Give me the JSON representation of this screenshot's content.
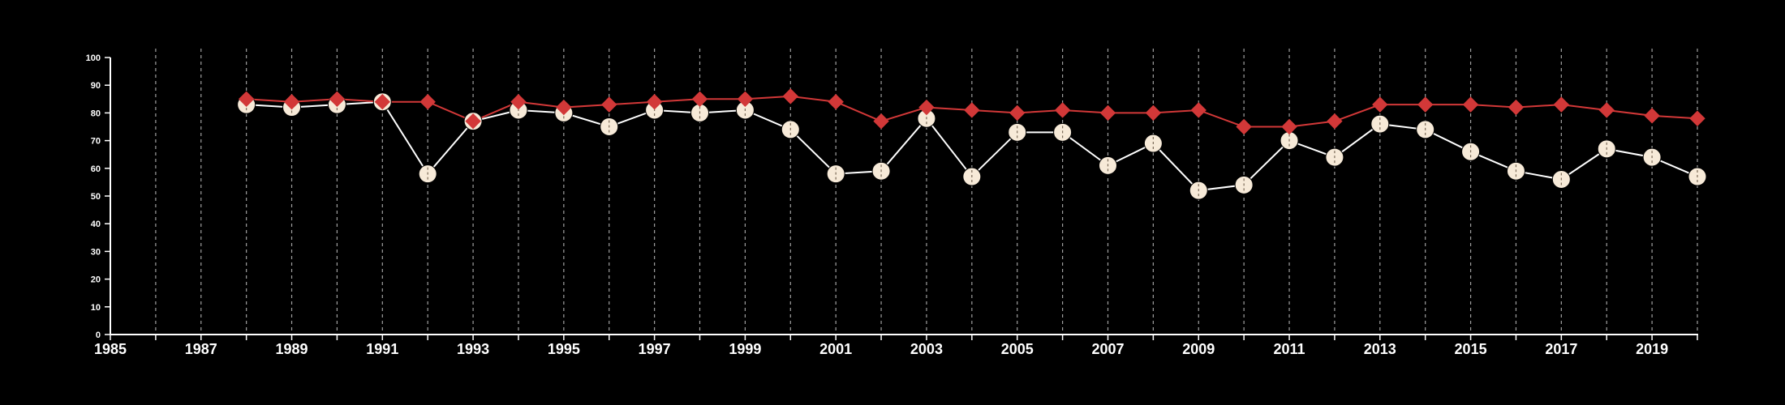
{
  "colors": {
    "background": "#000000",
    "axis": "#ffffff",
    "grid": "#bdbdbd",
    "series_a_line": "#ffffff",
    "series_a_marker": "#f7ead8",
    "series_a_dash": "#7a6a58",
    "series_b": "#d23838"
  },
  "chart_data": {
    "type": "line",
    "title": "",
    "xlabel": "",
    "ylabel": "",
    "xlim": [
      1985,
      2020
    ],
    "ylim": [
      0,
      100
    ],
    "y_ticks": [
      0,
      10,
      20,
      30,
      40,
      50,
      60,
      70,
      80,
      90,
      100
    ],
    "x_tick_labels": [
      "1985",
      "1987",
      "1989",
      "1991",
      "1993",
      "1995",
      "1997",
      "1999",
      "2001",
      "2003",
      "2005",
      "2007",
      "2009",
      "2011",
      "2013",
      "2015",
      "2017",
      "2019"
    ],
    "x_ticks_minor": [
      1986,
      1988,
      1990,
      1992,
      1994,
      1996,
      1998,
      2000,
      2002,
      2004,
      2006,
      2008,
      2010,
      2012,
      2014,
      2016,
      2018,
      2020
    ],
    "grid": "vertical dashed lines at every year",
    "legend": "none",
    "series": [
      {
        "marker": "circle",
        "x": [
          1988,
          1989,
          1990,
          1991,
          1992,
          1993,
          1994,
          1995,
          1996,
          1997,
          1998,
          1999,
          2000,
          2001,
          2002,
          2003,
          2004,
          2005,
          2006,
          2007,
          2008,
          2009,
          2010,
          2011,
          2012,
          2013,
          2014,
          2015,
          2016,
          2017,
          2018,
          2019,
          2020
        ],
        "values": [
          83,
          82,
          83,
          84,
          58,
          77,
          81,
          80,
          75,
          81,
          80,
          81,
          74,
          58,
          59,
          78,
          57,
          73,
          73,
          61,
          69,
          52,
          54,
          70,
          64,
          76,
          74,
          66,
          59,
          56,
          67,
          64,
          57
        ]
      },
      {
        "marker": "diamond",
        "x": [
          1988,
          1989,
          1990,
          1991,
          1992,
          1993,
          1994,
          1995,
          1996,
          1997,
          1998,
          1999,
          2000,
          2001,
          2002,
          2003,
          2004,
          2005,
          2006,
          2007,
          2008,
          2009,
          2010,
          2011,
          2012,
          2013,
          2014,
          2015,
          2016,
          2017,
          2018,
          2019,
          2020
        ],
        "values": [
          85,
          84,
          85,
          84,
          84,
          77,
          84,
          82,
          83,
          84,
          85,
          85,
          86,
          84,
          77,
          82,
          81,
          80,
          81,
          80,
          80,
          81,
          75,
          75,
          77,
          83,
          83,
          83,
          82,
          83,
          81,
          79,
          78
        ]
      }
    ]
  }
}
